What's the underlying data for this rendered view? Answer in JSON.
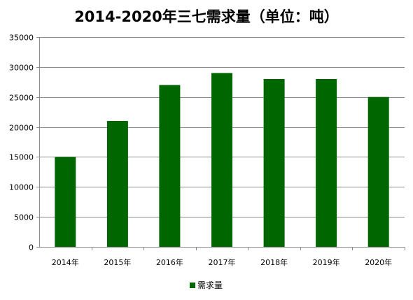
{
  "chart_data": {
    "type": "bar",
    "title": "2014-2020年三七需求量（单位：吨）",
    "categories": [
      "2014年",
      "2015年",
      "2016年",
      "2017年",
      "2018年",
      "2019年",
      "2020年"
    ],
    "series": [
      {
        "name": "需求量",
        "values": [
          15000,
          21000,
          27000,
          29000,
          28000,
          28000,
          25000
        ],
        "color": "#006600"
      }
    ],
    "y_ticks": [
      "0",
      "5000",
      "10000",
      "15000",
      "20000",
      "25000",
      "30000",
      "35000"
    ],
    "ylim": [
      0,
      35000
    ],
    "grid": true,
    "legend": "bottom-center",
    "xlabel": "",
    "ylabel": ""
  }
}
